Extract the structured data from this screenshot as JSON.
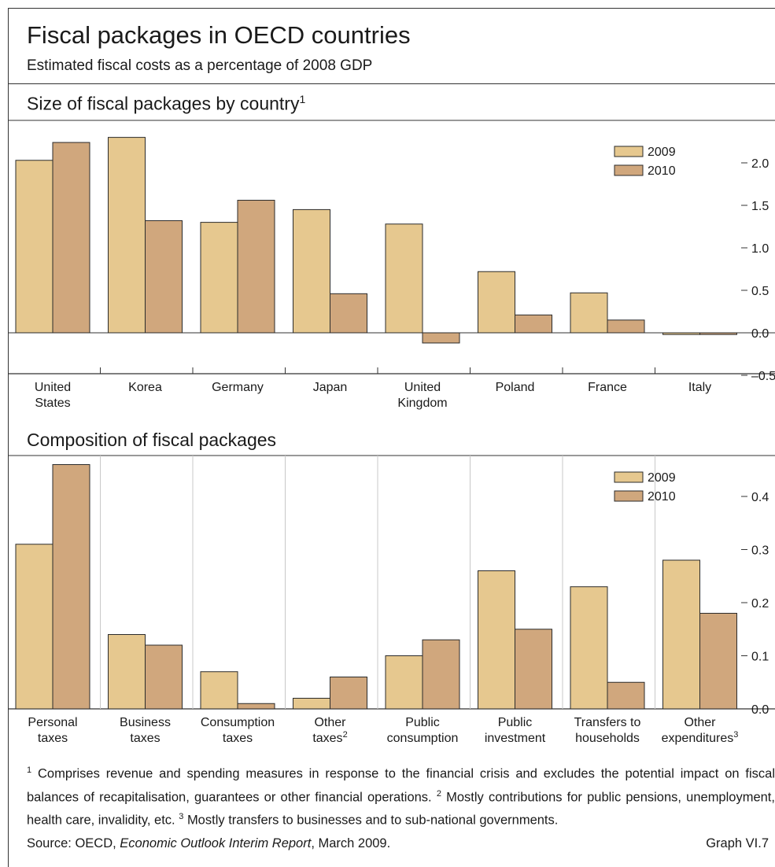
{
  "header": {
    "title": "Fiscal packages in OECD countries",
    "subtitle": "Estimated fiscal costs as a percentage of 2008 GDP"
  },
  "panel1": {
    "title": "Size of fiscal packages by country",
    "title_note": "1"
  },
  "panel2": {
    "title": "Composition of fiscal packages"
  },
  "colors": {
    "s2009": "#e6c88f",
    "s2010": "#d0a77d",
    "stroke": "#2b2b2b"
  },
  "chart_data": [
    {
      "type": "bar",
      "title": "Size of fiscal packages by country",
      "categories": [
        "United States",
        "Korea",
        "Germany",
        "Japan",
        "United Kingdom",
        "Poland",
        "France",
        "Italy"
      ],
      "category_lines": [
        [
          "United",
          "States"
        ],
        [
          "Korea"
        ],
        [
          "Germany"
        ],
        [
          "Japan"
        ],
        [
          "United",
          "Kingdom"
        ],
        [
          "Poland"
        ],
        [
          "France"
        ],
        [
          "Italy"
        ]
      ],
      "series": [
        {
          "name": "2009",
          "values": [
            2.03,
            2.3,
            1.3,
            1.45,
            1.28,
            0.72,
            0.47,
            -0.02
          ]
        },
        {
          "name": "2010",
          "values": [
            2.24,
            1.32,
            1.56,
            0.46,
            -0.12,
            0.21,
            0.15,
            -0.02
          ]
        }
      ],
      "ylim": [
        -0.5,
        2.33
      ],
      "y_ticks": [
        2.0,
        1.5,
        1.0,
        0.5,
        0.0,
        -0.5
      ],
      "y_tick_labels": [
        "2.0",
        "1.5",
        "1.0",
        "0.5",
        "0.0",
        "–0.5"
      ],
      "grid": false,
      "legend": "top-right"
    },
    {
      "type": "bar",
      "title": "Composition of fiscal packages",
      "categories": [
        "Personal taxes",
        "Business taxes",
        "Consumption taxes",
        "Other taxes",
        "Public consumption",
        "Public investment",
        "Transfers to households",
        "Other expenditures"
      ],
      "category_lines": [
        [
          "Personal",
          "taxes"
        ],
        [
          "Business",
          "taxes"
        ],
        [
          "Consumption",
          "taxes"
        ],
        [
          "Other",
          "taxes"
        ],
        [
          "Public",
          "consumption"
        ],
        [
          "Public",
          "investment"
        ],
        [
          "Transfers to",
          "households"
        ],
        [
          "Other",
          "expenditures"
        ]
      ],
      "category_notes": [
        "",
        "",
        "",
        "2",
        "",
        "",
        "",
        "3"
      ],
      "series": [
        {
          "name": "2009",
          "values": [
            0.31,
            0.14,
            0.07,
            0.02,
            0.1,
            0.26,
            0.23,
            0.28
          ]
        },
        {
          "name": "2010",
          "values": [
            0.46,
            0.12,
            0.01,
            0.06,
            0.13,
            0.15,
            0.05,
            0.18
          ]
        }
      ],
      "ylim": [
        0,
        0.48
      ],
      "y_ticks": [
        0.4,
        0.3,
        0.2,
        0.1,
        0.0
      ],
      "y_tick_labels": [
        "0.4",
        "0.3",
        "0.2",
        "0.1",
        "0.0"
      ],
      "grid": false,
      "legend": "top-right"
    }
  ],
  "footnotes": {
    "n1_mark": "1",
    "n1": "Comprises revenue and spending measures in response to the financial crisis and excludes the potential impact on fiscal balances of recapitalisation, guarantees or other financial operations.",
    "n2_mark": "2",
    "n2": "Mostly contributions for public pensions, unemployment, health care, invalidity, etc.",
    "n3_mark": "3",
    "n3": "Mostly transfers to businesses and to sub-national governments."
  },
  "source": {
    "prefix": "Source: OECD, ",
    "publication": "Economic Outlook Interim Report",
    "suffix": ", March 2009."
  },
  "graph_number": "Graph VI.7"
}
